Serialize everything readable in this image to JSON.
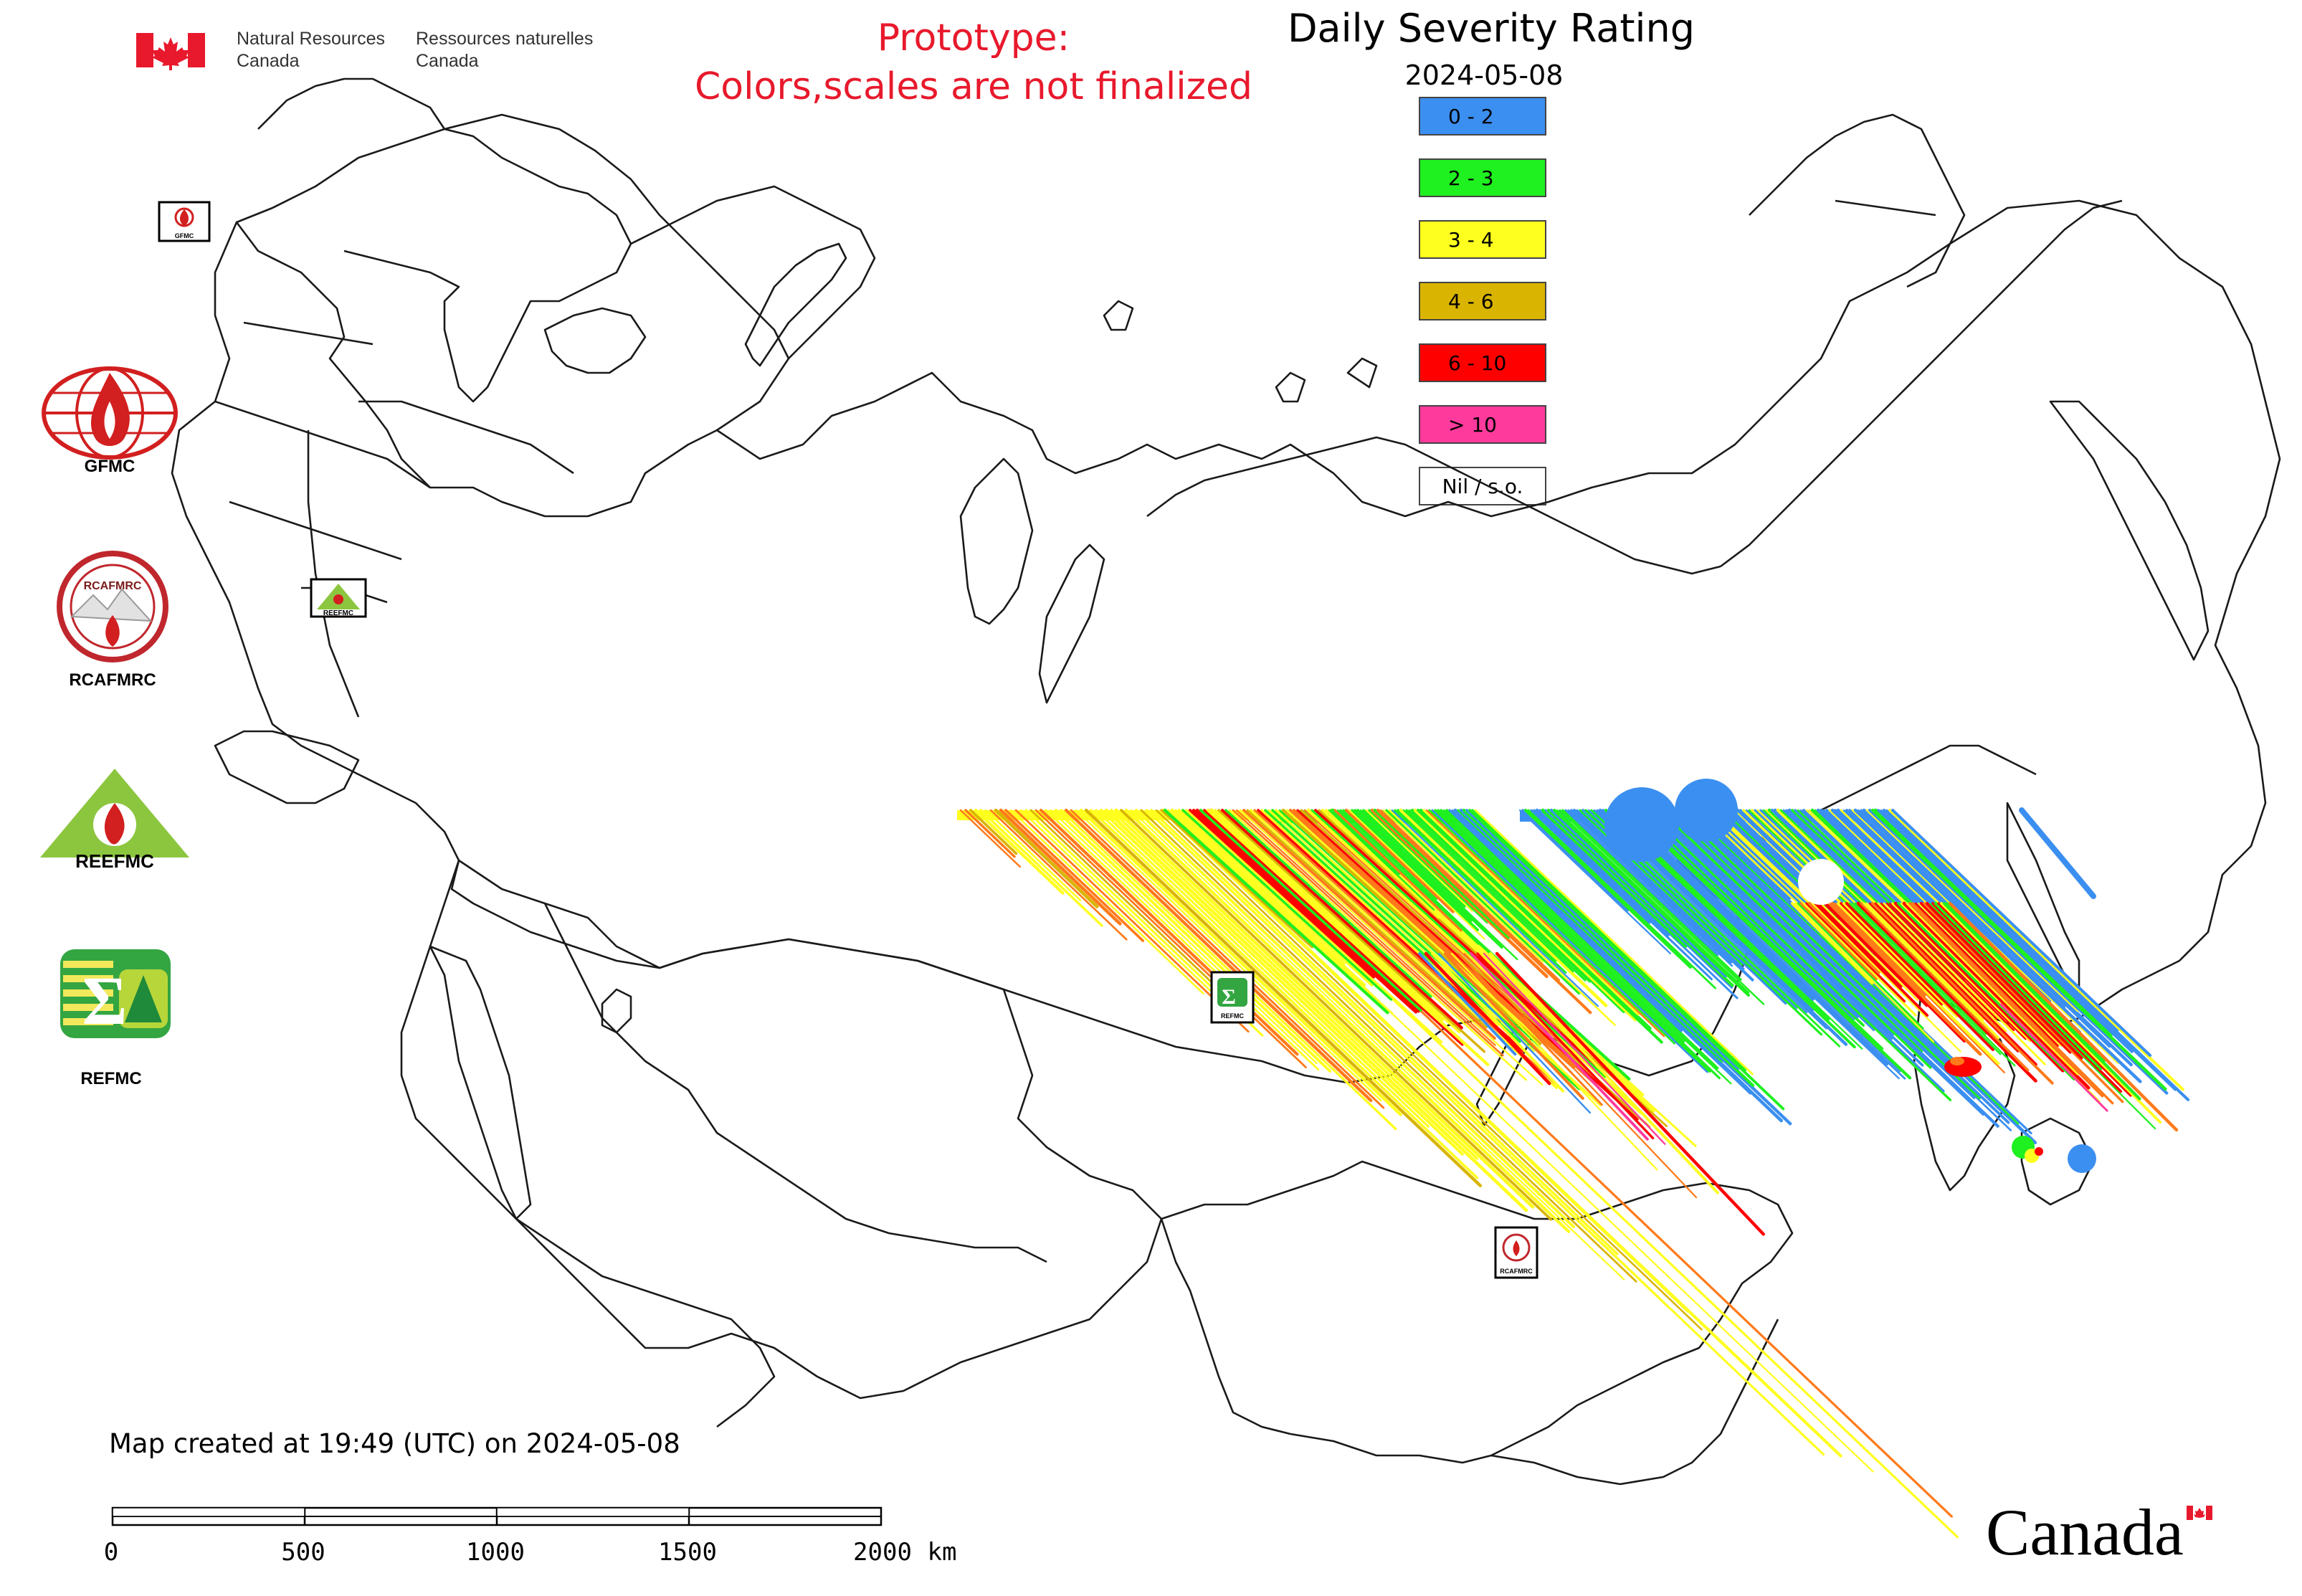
{
  "header": {
    "agency_en_line1": "Natural Resources",
    "agency_en_line2": "Canada",
    "agency_fr_line1": "Ressources naturelles",
    "agency_fr_line2": "Canada",
    "prototype_line1": "Prototype:",
    "prototype_line2": "Colors,scales are not finalized",
    "prototype_color": "#e8192c"
  },
  "map": {
    "title": "Daily Severity Rating",
    "date": "2024-05-08",
    "legend": [
      {
        "label": "0 - 2",
        "color": "#3b8ff0"
      },
      {
        "label": "2 - 3",
        "color": "#1ff01f"
      },
      {
        "label": "3 - 4",
        "color": "#ffff1f"
      },
      {
        "label": "4 - 6",
        "color": "#d9b400"
      },
      {
        "label": "6 - 10",
        "color": "#ff0000"
      },
      {
        "label": "> 10",
        "color": "#ff3a9d"
      },
      {
        "label": "Nil / s.o.",
        "color": "#ffffff"
      }
    ],
    "extra_color": "#ff7a1a",
    "created_text": "Map created at 19:49 (UTC) on 2024-05-08",
    "scale_bar": {
      "ticks": [
        "0",
        "500",
        "1000",
        "1500",
        "2000"
      ],
      "unit": "km"
    }
  },
  "logos": [
    {
      "label": "GFMC",
      "icon": "gfmc-globe-flame-logo"
    },
    {
      "label": "RCAFMRC",
      "icon": "rcafmrc-seal-logo"
    },
    {
      "label": "",
      "icon": "reefmc-triangle-logo",
      "wordmark": "REEFMC"
    },
    {
      "label": "REFMC",
      "icon": "refmc-sigma-logo"
    }
  ],
  "map_markers": [
    {
      "label": "GFMC",
      "icon": "gfmc-marker"
    },
    {
      "label": "REEFMC",
      "icon": "reefmc-marker"
    },
    {
      "label": "REFMC",
      "icon": "refmc-marker"
    },
    {
      "label": "RCAFMRC",
      "icon": "rcafmrc-marker"
    }
  ],
  "footer": {
    "wordmark": "Canada"
  }
}
